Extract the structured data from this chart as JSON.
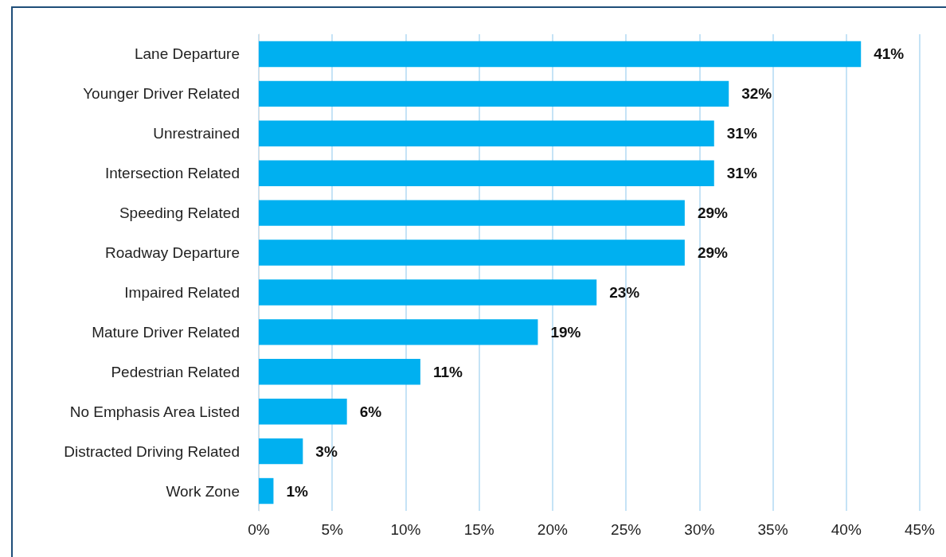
{
  "chart_data": {
    "type": "bar",
    "orientation": "horizontal",
    "categories": [
      "Lane Departure",
      "Younger Driver Related",
      "Unrestrained",
      "Intersection Related",
      "Speeding Related",
      "Roadway Departure",
      "Impaired Related",
      "Mature Driver Related",
      "Pedestrian Related",
      "No Emphasis Area Listed",
      "Distracted Driving Related",
      "Work Zone"
    ],
    "values": [
      41,
      32,
      31,
      31,
      29,
      29,
      23,
      19,
      11,
      6,
      3,
      1
    ],
    "value_labels": [
      "41%",
      "32%",
      "31%",
      "31%",
      "29%",
      "29%",
      "23%",
      "19%",
      "11%",
      "6%",
      "3%",
      "1%"
    ],
    "color": "#00b0f0",
    "xlim": [
      0,
      45
    ],
    "xticks": [
      {
        "value": 0,
        "label": "0%"
      },
      {
        "value": 5,
        "label": "5%"
      },
      {
        "value": 10,
        "label": "10%"
      },
      {
        "value": 15,
        "label": "15%"
      },
      {
        "value": 20,
        "label": "20%"
      },
      {
        "value": 25,
        "label": "25%"
      },
      {
        "value": 30,
        "label": "30%"
      },
      {
        "value": 35,
        "label": "35%"
      },
      {
        "value": 40,
        "label": "40%"
      },
      {
        "value": 45,
        "label": "45%"
      }
    ],
    "grid": "x"
  }
}
